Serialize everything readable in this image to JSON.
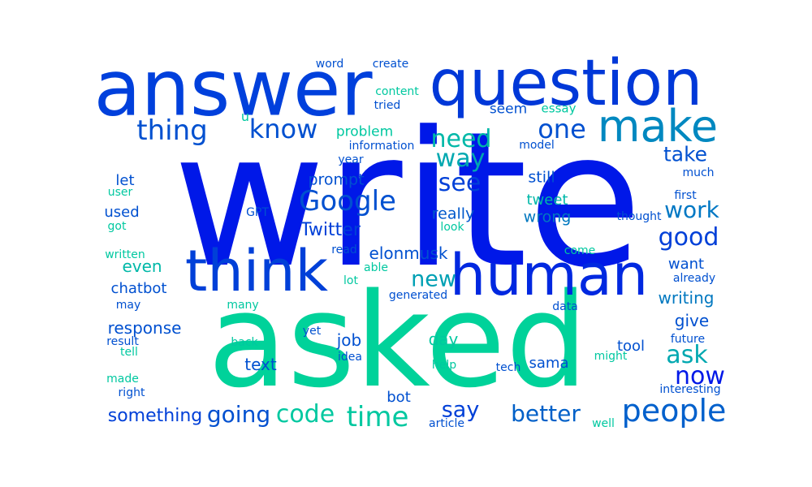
{
  "words": [
    {
      "text": "write",
      "color": "#0018e8"
    },
    {
      "text": "asked",
      "color": "#00d29a"
    },
    {
      "text": "answer",
      "color": "#0040dc"
    },
    {
      "text": "question",
      "color": "#0038d8"
    },
    {
      "text": "human",
      "color": "#0028e0"
    },
    {
      "text": "think",
      "color": "#0040d8"
    },
    {
      "text": "make",
      "color": "#0088c0"
    },
    {
      "text": "people",
      "color": "#0060cc"
    },
    {
      "text": "Google",
      "color": "#0050d0"
    },
    {
      "text": "know",
      "color": "#0050d0"
    },
    {
      "text": "thing",
      "color": "#0050d0"
    },
    {
      "text": "one",
      "color": "#0050d0"
    },
    {
      "text": "need",
      "color": "#00b8a8"
    },
    {
      "text": "way",
      "color": "#00a8b0"
    },
    {
      "text": "see",
      "color": "#0040d8"
    },
    {
      "text": "take",
      "color": "#0050d0"
    },
    {
      "text": "good",
      "color": "#0040d8"
    },
    {
      "text": "work",
      "color": "#0078c4"
    },
    {
      "text": "ask",
      "color": "#00a8b0"
    },
    {
      "text": "now",
      "color": "#0018e8"
    },
    {
      "text": "time",
      "color": "#00c8a0"
    },
    {
      "text": "code",
      "color": "#00c8a0"
    },
    {
      "text": "going",
      "color": "#0050d0"
    },
    {
      "text": "something",
      "color": "#0040d8"
    },
    {
      "text": "better",
      "color": "#0060c8"
    },
    {
      "text": "say",
      "color": "#0040d8"
    },
    {
      "text": "new",
      "color": "#00a0b4"
    },
    {
      "text": "Twitter",
      "color": "#0040d8"
    },
    {
      "text": "really",
      "color": "#0058cc"
    },
    {
      "text": "wrong",
      "color": "#0078c0"
    },
    {
      "text": "tweet",
      "color": "#00b8a8"
    },
    {
      "text": "still",
      "color": "#0050d0"
    },
    {
      "text": "prompt",
      "color": "#0050d0"
    },
    {
      "text": "elonmusk",
      "color": "#0050d0"
    },
    {
      "text": "even",
      "color": "#00b8a8"
    },
    {
      "text": "chatbot",
      "color": "#0050d0"
    },
    {
      "text": "response",
      "color": "#0050d0"
    },
    {
      "text": "writing",
      "color": "#0078c0"
    },
    {
      "text": "want",
      "color": "#0050d0"
    },
    {
      "text": "give",
      "color": "#0050d0"
    },
    {
      "text": "tool",
      "color": "#0050d0"
    },
    {
      "text": "job",
      "color": "#0050d0"
    },
    {
      "text": "day",
      "color": "#00c8a0"
    },
    {
      "text": "text",
      "color": "#0050d0"
    },
    {
      "text": "sama",
      "color": "#0050d0"
    },
    {
      "text": "bot",
      "color": "#0050d0"
    },
    {
      "text": "used",
      "color": "#0050d0"
    },
    {
      "text": "let",
      "color": "#0050d0"
    },
    {
      "text": "problem",
      "color": "#00c8a0"
    },
    {
      "text": "seem",
      "color": "#0050d0"
    },
    {
      "text": "essay",
      "color": "#00c8a0"
    },
    {
      "text": "information",
      "color": "#0050d0"
    },
    {
      "text": "model",
      "color": "#0050d0"
    },
    {
      "text": "content",
      "color": "#00c8a0"
    },
    {
      "text": "tried",
      "color": "#0050d0"
    },
    {
      "text": "word",
      "color": "#0050d0"
    },
    {
      "text": "create",
      "color": "#0050d0"
    },
    {
      "text": "u",
      "color": "#00c8a0"
    },
    {
      "text": "year",
      "color": "#0050d0"
    },
    {
      "text": "much",
      "color": "#0050d0"
    },
    {
      "text": "first",
      "color": "#0050d0"
    },
    {
      "text": "thought",
      "color": "#0050d0"
    },
    {
      "text": "look",
      "color": "#00c8a0"
    },
    {
      "text": "GPT",
      "color": "#0050d0"
    },
    {
      "text": "got",
      "color": "#00c8a0"
    },
    {
      "text": "user",
      "color": "#00c8a0"
    },
    {
      "text": "written",
      "color": "#00c8a0"
    },
    {
      "text": "read",
      "color": "#0050d0"
    },
    {
      "text": "able",
      "color": "#00c8a0"
    },
    {
      "text": "lot",
      "color": "#00c8a0"
    },
    {
      "text": "generated",
      "color": "#0050d0"
    },
    {
      "text": "come",
      "color": "#00c8a0"
    },
    {
      "text": "already",
      "color": "#0050d0"
    },
    {
      "text": "data",
      "color": "#0050d0"
    },
    {
      "text": "many",
      "color": "#00c8a0"
    },
    {
      "text": "may",
      "color": "#0050d0"
    },
    {
      "text": "result",
      "color": "#0050d0"
    },
    {
      "text": "tell",
      "color": "#00c8a0"
    },
    {
      "text": "back",
      "color": "#00c8a0"
    },
    {
      "text": "yet",
      "color": "#0050d0"
    },
    {
      "text": "idea",
      "color": "#0050d0"
    },
    {
      "text": "help",
      "color": "#00c8a0"
    },
    {
      "text": "tech",
      "color": "#0050d0"
    },
    {
      "text": "future",
      "color": "#0050d0"
    },
    {
      "text": "might",
      "color": "#00c8a0"
    },
    {
      "text": "made",
      "color": "#00c8a0"
    },
    {
      "text": "right",
      "color": "#0050d0"
    },
    {
      "text": "interesting",
      "color": "#0050d0"
    },
    {
      "text": "article",
      "color": "#0050d0"
    },
    {
      "text": "well",
      "color": "#00c8a0"
    }
  ]
}
